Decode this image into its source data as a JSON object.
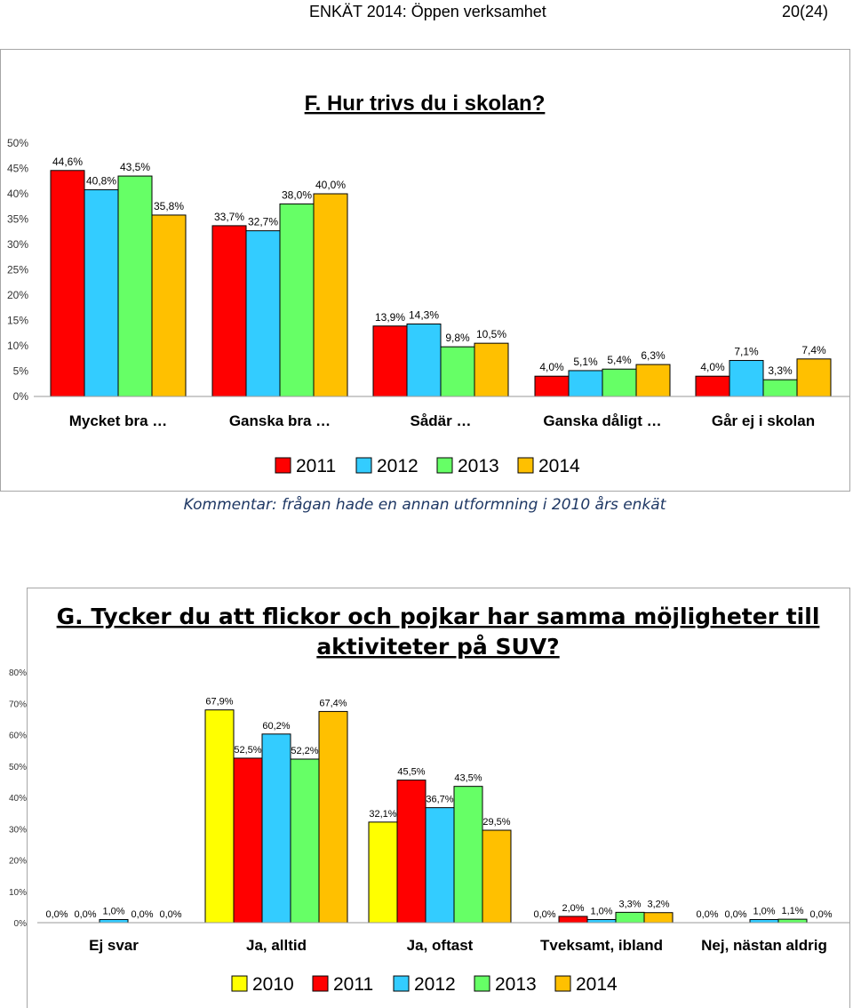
{
  "header": {
    "title": "ENKÄT 2014: Öppen verksamhet",
    "page": "20(24)"
  },
  "comment": "Kommentar: frågan hade en annan utformning i 2010 års enkät",
  "chart_data": [
    {
      "type": "bar",
      "title": "F. Hur trivs du i skolan?",
      "categories": [
        "Mycket bra …",
        "Ganska bra …",
        "Sådär …",
        "Ganska dåligt …",
        "Går ej i skolan"
      ],
      "series": [
        {
          "name": "2011",
          "color": "#ff0000",
          "values": [
            44.6,
            33.7,
            13.9,
            4.0,
            4.0
          ],
          "labels": [
            "44,6%",
            "33,7%",
            "13,9%",
            "4,0%",
            "4,0%"
          ]
        },
        {
          "name": "2012",
          "color": "#33ccff",
          "values": [
            40.8,
            32.7,
            14.3,
            5.1,
            7.1
          ],
          "labels": [
            "40,8%",
            "32,7%",
            "14,3%",
            "5,1%",
            "7,1%"
          ]
        },
        {
          "name": "2013",
          "color": "#66ff66",
          "values": [
            43.5,
            38.0,
            9.8,
            5.4,
            3.3
          ],
          "labels": [
            "43,5%",
            "38,0%",
            "9,8%",
            "5,4%",
            "3,3%"
          ]
        },
        {
          "name": "2014",
          "color": "#ffc000",
          "values": [
            35.8,
            40.0,
            10.5,
            6.3,
            7.4
          ],
          "labels": [
            "35,8%",
            "40,0%",
            "10,5%",
            "6,3%",
            "7,4%"
          ]
        }
      ],
      "ylim": [
        0,
        50
      ],
      "yticks": [
        "0%",
        "5%",
        "10%",
        "15%",
        "20%",
        "25%",
        "30%",
        "35%",
        "40%",
        "45%",
        "50%"
      ],
      "legend_position": "bottom"
    },
    {
      "type": "bar",
      "title": "G. Tycker du att flickor och pojkar har samma möjligheter till aktiviteter på SUV?",
      "title_lines": [
        "G. Tycker du att flickor och pojkar har samma möjligheter till",
        "aktiviteter på SUV?"
      ],
      "categories": [
        "Ej svar",
        "Ja, alltid",
        "Ja, oftast",
        "Tveksamt, ibland",
        "Nej, nästan aldrig"
      ],
      "series": [
        {
          "name": "2010",
          "color": "#ffff00",
          "values": [
            0.0,
            67.9,
            32.1,
            0.0,
            0.0
          ],
          "labels": [
            "0,0%",
            "67,9%",
            "32,1%",
            "0,0%",
            "0,0%"
          ]
        },
        {
          "name": "2011",
          "color": "#ff0000",
          "values": [
            0.0,
            52.5,
            45.5,
            2.0,
            0.0
          ],
          "labels": [
            "0,0%",
            "52,5%",
            "45,5%",
            "2,0%",
            "0,0%"
          ]
        },
        {
          "name": "2012",
          "color": "#33ccff",
          "values": [
            1.0,
            60.2,
            36.7,
            1.0,
            1.0
          ],
          "labels": [
            "1,0%",
            "60,2%",
            "36,7%",
            "1,0%",
            "1,0%"
          ]
        },
        {
          "name": "2013",
          "color": "#66ff66",
          "values": [
            0.0,
            52.2,
            43.5,
            3.3,
            1.1
          ],
          "labels": [
            "0,0%",
            "52,2%",
            "43,5%",
            "3,3%",
            "1,1%"
          ]
        },
        {
          "name": "2014",
          "color": "#ffc000",
          "values": [
            0.0,
            67.4,
            29.5,
            3.2,
            0.0
          ],
          "labels": [
            "0,0%",
            "67,4%",
            "29,5%",
            "3,2%",
            "0,0%"
          ]
        }
      ],
      "ylim": [
        0,
        80
      ],
      "yticks": [
        "0%",
        "10%",
        "20%",
        "30%",
        "40%",
        "50%",
        "60%",
        "70%",
        "80%"
      ],
      "legend_position": "bottom"
    }
  ]
}
